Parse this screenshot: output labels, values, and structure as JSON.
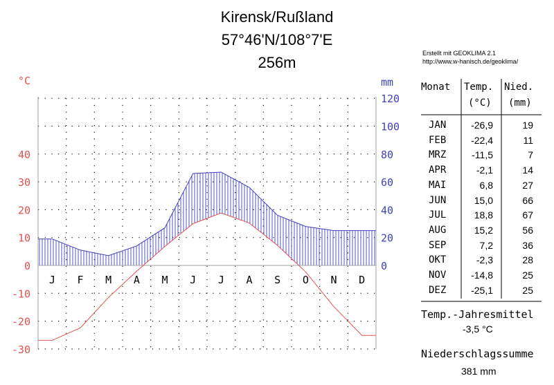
{
  "title": {
    "location": "Kirensk/Rußland",
    "coords": "57°46'N/108°7'E",
    "elevation": "256m"
  },
  "credit": {
    "line1": "Erstellt mit GEOKLIMA 2.1",
    "line2": "http://www.w-hanisch.de/geoklima/"
  },
  "colors": {
    "temperature": "#e05050",
    "precipitation": "#4040c0",
    "axis": "#a0a0a0",
    "grid": "#000000"
  },
  "chart_data": {
    "type": "line",
    "left_axis_unit": "°C",
    "right_axis_unit": "mm",
    "temp_ticks": [
      "40",
      "30",
      "20",
      "10",
      "0",
      "-10",
      "-20",
      "-30"
    ],
    "precip_ticks": [
      "120",
      "100",
      "80",
      "60",
      "40",
      "20",
      "0"
    ],
    "temp_range": [
      -30,
      40
    ],
    "precip_range": [
      0,
      120
    ],
    "grid": "dotted",
    "categories": [
      "J",
      "F",
      "M",
      "A",
      "M",
      "J",
      "J",
      "A",
      "S",
      "O",
      "N",
      "D"
    ],
    "series": [
      {
        "name": "Temp.",
        "values": [
          -26.9,
          -22.4,
          -11.5,
          -2.1,
          6.8,
          15.0,
          18.8,
          15.2,
          7.2,
          -2.3,
          -14.8,
          -25.1
        ]
      },
      {
        "name": "Nied.",
        "values": [
          19,
          11,
          7,
          14,
          27,
          66,
          67,
          56,
          36,
          28,
          25,
          25
        ]
      }
    ]
  },
  "table": {
    "headers": {
      "month": "Monat",
      "temp": "Temp.",
      "temp_unit": "(°C)",
      "precip": "Nied.",
      "precip_unit": "(mm)"
    },
    "rows": [
      {
        "month": "JAN",
        "temp": "-26,9",
        "precip": "19"
      },
      {
        "month": "FEB",
        "temp": "-22,4",
        "precip": "11"
      },
      {
        "month": "MRZ",
        "temp": "-11,5",
        "precip": "7"
      },
      {
        "month": "APR",
        "temp": "-2,1",
        "precip": "14"
      },
      {
        "month": "MAI",
        "temp": "6,8",
        "precip": "27"
      },
      {
        "month": "JUN",
        "temp": "15,0",
        "precip": "66"
      },
      {
        "month": "JUL",
        "temp": "18,8",
        "precip": "67"
      },
      {
        "month": "AUG",
        "temp": "15,2",
        "precip": "56"
      },
      {
        "month": "SEP",
        "temp": "7,2",
        "precip": "36"
      },
      {
        "month": "OKT",
        "temp": "-2,3",
        "precip": "28"
      },
      {
        "month": "NOV",
        "temp": "-14,8",
        "precip": "25"
      },
      {
        "month": "DEZ",
        "temp": "-25,1",
        "precip": "25"
      }
    ]
  },
  "summary": {
    "annual_temp_label": "Temp.-Jahresmittel",
    "annual_temp_value": "-3,5 °C",
    "precip_sum_label": "Niederschlagssumme",
    "precip_sum_value": "381 mm"
  }
}
